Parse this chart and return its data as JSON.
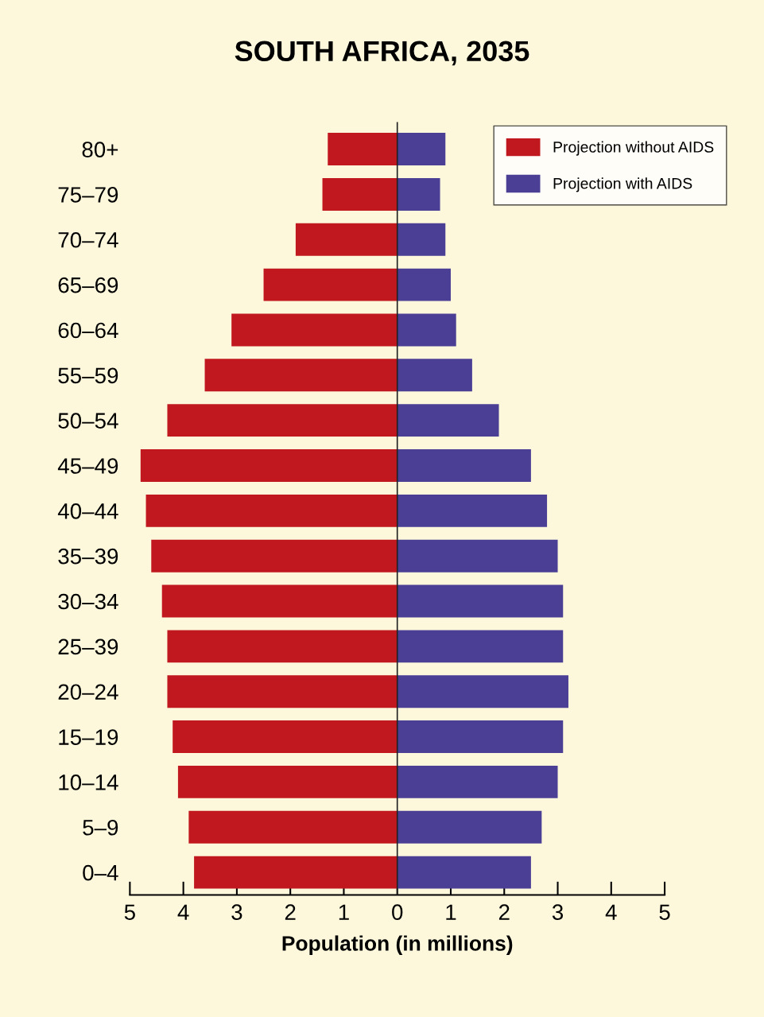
{
  "chart_data": {
    "type": "bar",
    "orientation": "horizontal",
    "stacked": true,
    "title": "SOUTH AFRICA, 2035",
    "xlabel": "Population (in millions)",
    "categories": [
      "80+",
      "75–79",
      "70–74",
      "65–69",
      "60–64",
      "55–59",
      "50–54",
      "45–49",
      "40–44",
      "35–39",
      "30–34",
      "25–39",
      "20–24",
      "15–19",
      "10–14",
      "5–9",
      "0–4"
    ],
    "series": [
      {
        "name": "Projection without AIDS",
        "color": "#c0181e",
        "values": [
          -1.3,
          -1.4,
          -1.9,
          -2.5,
          -3.1,
          -3.6,
          -4.3,
          -4.8,
          -4.7,
          -4.6,
          -4.4,
          -4.3,
          -4.3,
          -4.2,
          -4.1,
          -3.9,
          -3.8
        ]
      },
      {
        "name": "Projection with AIDS",
        "color": "#4a3f94",
        "values": [
          0.9,
          0.8,
          0.9,
          1.0,
          1.1,
          1.4,
          1.9,
          2.5,
          2.8,
          3.0,
          3.1,
          3.1,
          3.2,
          3.1,
          3.0,
          2.7,
          2.5
        ]
      }
    ],
    "xlim": [
      -5,
      5
    ],
    "xticks": [
      {
        "value": -5,
        "label": "5"
      },
      {
        "value": -4,
        "label": "4"
      },
      {
        "value": -3,
        "label": "3"
      },
      {
        "value": -2,
        "label": "2"
      },
      {
        "value": -1,
        "label": "1"
      },
      0,
      1,
      2,
      3,
      4,
      5
    ],
    "legend": "top right"
  }
}
